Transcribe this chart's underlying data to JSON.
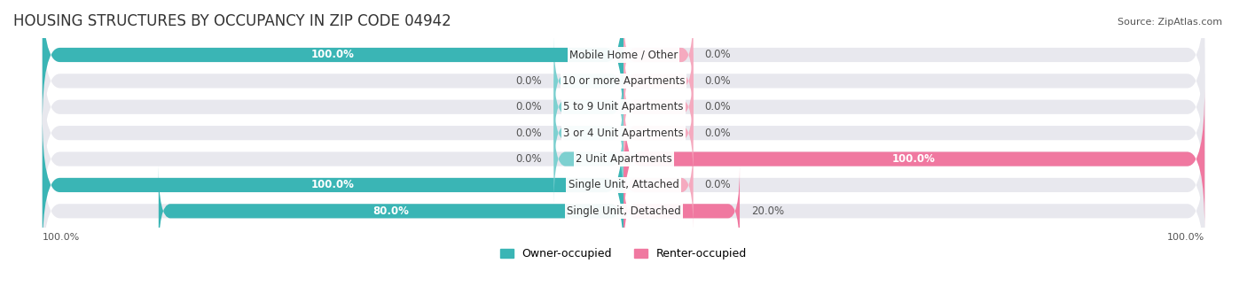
{
  "title": "HOUSING STRUCTURES BY OCCUPANCY IN ZIP CODE 04942",
  "source": "Source: ZipAtlas.com",
  "categories": [
    "Single Unit, Detached",
    "Single Unit, Attached",
    "2 Unit Apartments",
    "3 or 4 Unit Apartments",
    "5 to 9 Unit Apartments",
    "10 or more Apartments",
    "Mobile Home / Other"
  ],
  "owner_pct": [
    80.0,
    100.0,
    0.0,
    0.0,
    0.0,
    0.0,
    100.0
  ],
  "renter_pct": [
    20.0,
    0.0,
    100.0,
    0.0,
    0.0,
    0.0,
    0.0
  ],
  "owner_color": "#3ab5b5",
  "renter_color": "#f078a0",
  "owner_color_light": "#7dd0d0",
  "renter_color_light": "#f5aabf",
  "bar_bg_color": "#e8e8ee",
  "bar_height": 0.55,
  "title_fontsize": 12,
  "label_fontsize": 8.5,
  "tick_fontsize": 8,
  "legend_fontsize": 9,
  "source_fontsize": 8
}
